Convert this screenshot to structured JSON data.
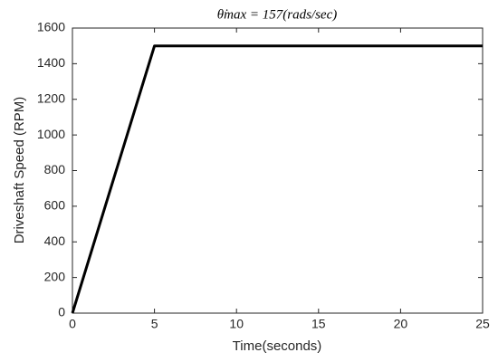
{
  "chart_data": {
    "type": "line",
    "title": "θ̇max = 157(rads/sec)",
    "x_label": "Time(seconds)",
    "y_label": "Driveshaft Speed (RPM)",
    "x": [
      0,
      5,
      25
    ],
    "series": [
      {
        "name": "Driveshaft Speed",
        "color": "#000000",
        "values": [
          0,
          1500,
          1500
        ]
      }
    ],
    "xlim": [
      0,
      25
    ],
    "xticks": [
      0,
      5,
      10,
      15,
      20,
      25
    ],
    "ylim": [
      0,
      1600
    ],
    "yticks": [
      0,
      200,
      400,
      600,
      800,
      1000,
      1200,
      1400,
      1600
    ],
    "grid": false,
    "legend": false
  }
}
